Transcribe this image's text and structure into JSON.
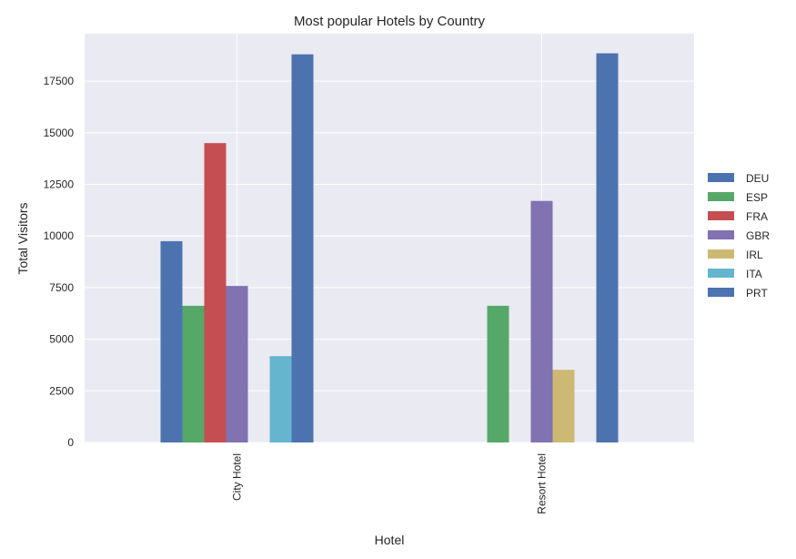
{
  "chart_data": {
    "type": "bar",
    "title": "Most popular Hotels by Country",
    "xlabel": "Hotel",
    "ylabel": "Total Visitors",
    "categories": [
      "City Hotel",
      "Resort Hotel"
    ],
    "ylim": [
      0,
      19800
    ],
    "yticks": [
      0,
      2500,
      5000,
      7500,
      10000,
      12500,
      15000,
      17500
    ],
    "grid": true,
    "legend_position": "right",
    "series": [
      {
        "name": "DEU",
        "color": "#4c72b0",
        "values": [
          9750,
          0
        ]
      },
      {
        "name": "ESP",
        "color": "#55a868",
        "values": [
          6620,
          6620
        ]
      },
      {
        "name": "FRA",
        "color": "#c44e52",
        "values": [
          14500,
          0
        ]
      },
      {
        "name": "GBR",
        "color": "#8172b2",
        "values": [
          7580,
          11700
        ]
      },
      {
        "name": "IRL",
        "color": "#ccb974",
        "values": [
          0,
          3520
        ]
      },
      {
        "name": "ITA",
        "color": "#64b5cd",
        "values": [
          4180,
          0
        ]
      },
      {
        "name": "PRT",
        "color": "#4c72b0",
        "values": [
          18800,
          18850
        ]
      }
    ]
  }
}
